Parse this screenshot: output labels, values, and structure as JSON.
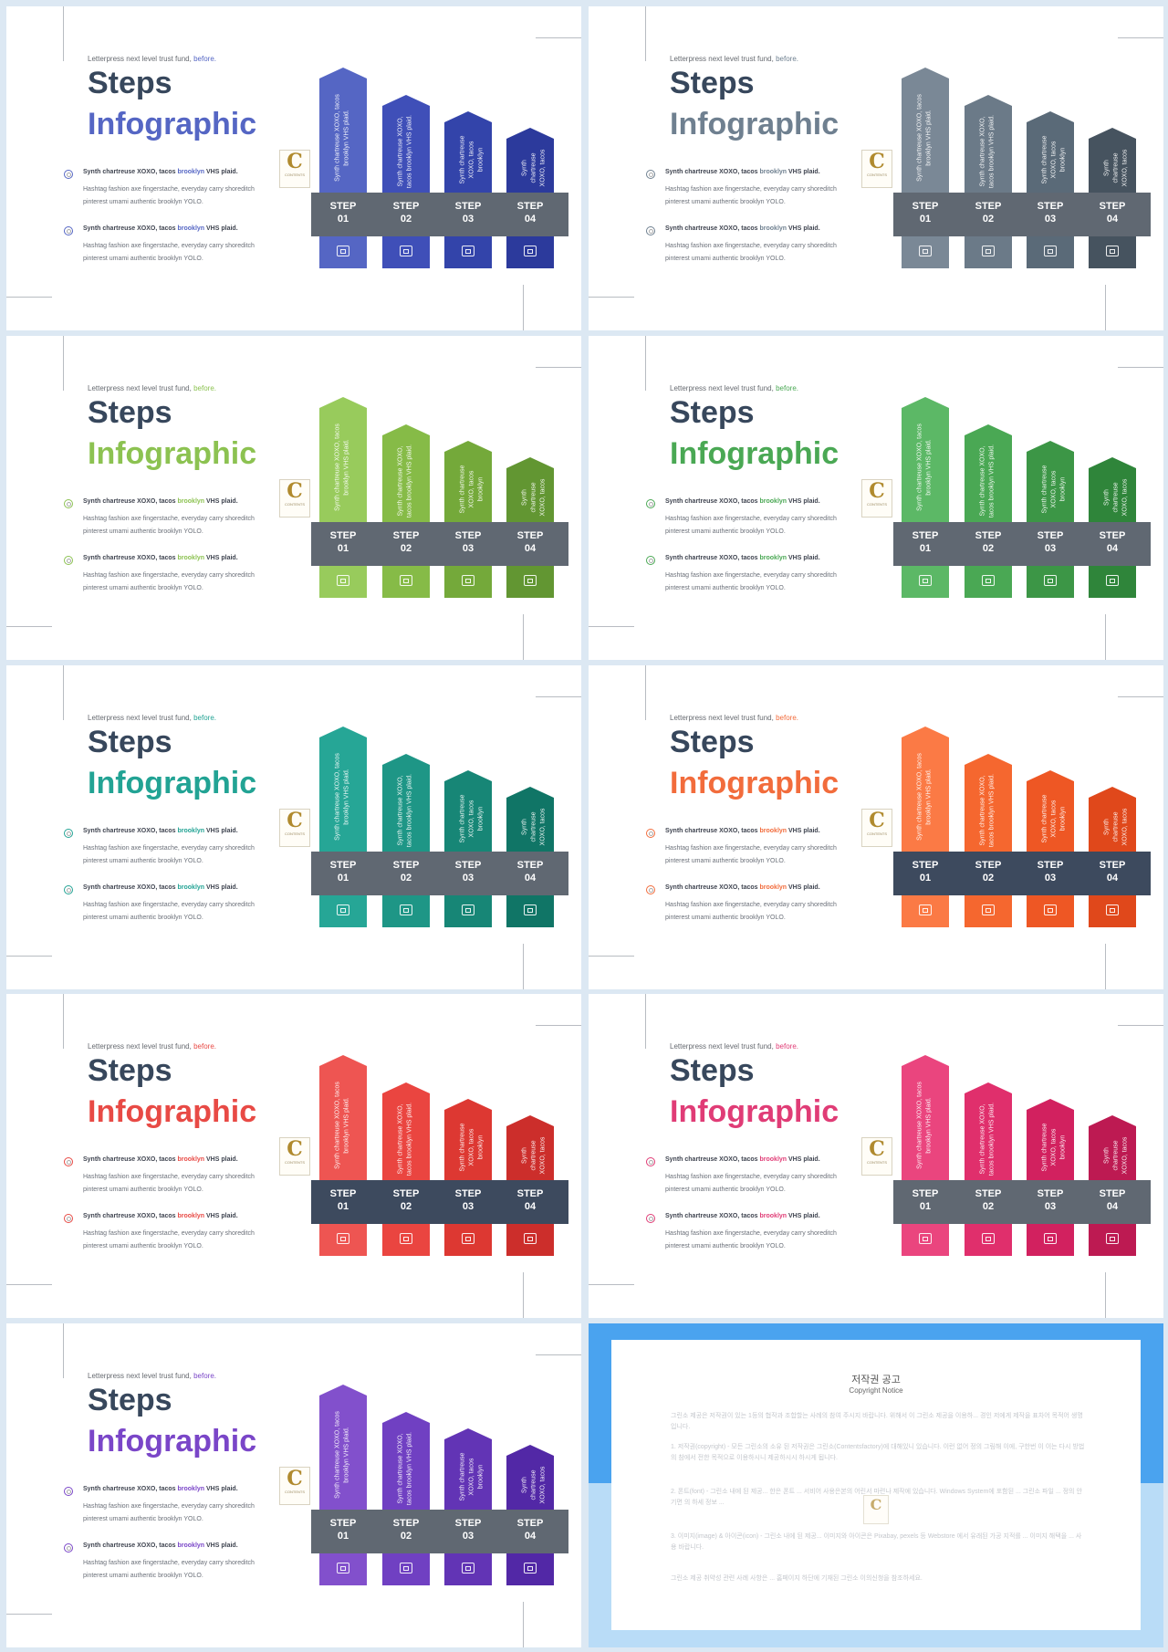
{
  "slide_text": {
    "tagline_prefix": "Letterpress next level trust fund,",
    "tagline_highlight": "before.",
    "title_line1": "Steps",
    "title_line2": "Infographic",
    "bullets": [
      {
        "title_prefix": "Synth chartreuse XOXO, tacos",
        "title_highlight": "brooklyn",
        "title_suffix": "VHS plaid.",
        "body_line1": "Hashtag fashion axe fingerstache, everyday carry shoreditch",
        "body_line2": "pinterest umami authentic brooklyn YOLO."
      },
      {
        "title_prefix": "Synth chartreuse XOXO, tacos",
        "title_highlight": "brooklyn",
        "title_suffix": "VHS plaid.",
        "body_line1": "Hashtag fashion axe fingerstache, everyday carry shoreditch",
        "body_line2": "pinterest umami authentic brooklyn YOLO."
      }
    ],
    "bar_texts": [
      [
        "Synth chartreuse XOXO, tacos",
        "brooklyn VHS plaid."
      ],
      [
        "Synth chartreuse XOXO,",
        "tacos brooklyn VHS plaid."
      ],
      [
        "Synth chartreuse",
        "XOXO, tacos brooklyn"
      ],
      [
        "Synth chartreuse",
        "XOXO, tacos"
      ]
    ],
    "steps": [
      {
        "label": "STEP",
        "num": "01"
      },
      {
        "label": "STEP",
        "num": "02"
      },
      {
        "label": "STEP",
        "num": "03"
      },
      {
        "label": "STEP",
        "num": "04"
      }
    ],
    "step_icons": [
      "gift-icon",
      "play-icon",
      "image-icon",
      "briefcase-icon"
    ],
    "logo_letter": "C",
    "logo_text": "CONTENTS"
  },
  "variants": [
    {
      "name": "blue",
      "accent": "#5566c4",
      "bars": [
        "#5566c4",
        "#3f4fb8",
        "#3344aa",
        "#2c3a9c"
      ],
      "band": "#606872"
    },
    {
      "name": "slate",
      "accent": "#6f8090",
      "bars": [
        "#7a8896",
        "#6b7a88",
        "#5a6a78",
        "#46535f"
      ],
      "band": "#606872"
    },
    {
      "name": "lime",
      "accent": "#8cc251",
      "bars": [
        "#98cb5c",
        "#86bb47",
        "#74a93a",
        "#629632"
      ],
      "band": "#606872"
    },
    {
      "name": "green",
      "accent": "#4aa854",
      "bars": [
        "#5cb866",
        "#4aa854",
        "#3c9646",
        "#2f853a"
      ],
      "band": "#606872"
    },
    {
      "name": "teal",
      "accent": "#22a394",
      "bars": [
        "#26a696",
        "#1e9686",
        "#178676",
        "#107566"
      ],
      "band": "#606872"
    },
    {
      "name": "orange",
      "accent": "#f26c3c",
      "bars": [
        "#fb7a45",
        "#f5672f",
        "#ee5724",
        "#e0481b"
      ],
      "band": "#3d4a5e"
    },
    {
      "name": "red",
      "accent": "#e84a45",
      "bars": [
        "#ee5552",
        "#ea4540",
        "#dd3832",
        "#cc2e2b"
      ],
      "band": "#3d4a5e"
    },
    {
      "name": "pink",
      "accent": "#e03c76",
      "bars": [
        "#ea457e",
        "#e02f6c",
        "#d2215f",
        "#bd1a52"
      ],
      "band": "#606872"
    },
    {
      "name": "purple",
      "accent": "#7a46c8",
      "bars": [
        "#8250cc",
        "#7040c2",
        "#6234b5",
        "#5228a6"
      ],
      "band": "#606872"
    }
  ],
  "notice": {
    "title": "저작권 공고",
    "subtitle": "Copyright Notice",
    "paragraphs": [
      "그린소 제공은 저작권이 있는 1등의 협작과 조합할는 사례의 참여 주시지 바랍니다. 위해서 이 그린소 제공을 이용하... 경인 저에게 제작을 표차어 목적어 생명 입니다.",
      "1. 저작권(copyright) - 모든 그린소의 소유 된 저작권은 그린소(Contentsfactory)에 대해있니 있습니다. 이런 없어 정의 그림해 이에, 구한번 이 이는 다시 방법의 참에서 전한 목적으로 이용하시니 제공하시시 하시게 됩니다.",
      "2. 폰트(font) - 그린소 내에 된 제공... 한은 폰트 ... 서비어 사용은본의 어린서 마련나 제작에 있습니다. Windows System에 포함된 ... 그린소 파일 ... 정의 안기면 의 하세 정보 ...",
      "3. 이미지(image) & 아이콘(icon) - 그린소 내에 된 제공... 이미지와 아이콘은 Pixabay, pexels 등 Webstore 에서 유래된 가공 지적를 ... 이미지 해택을 ... 사용 바랍니다.",
      "그린소 제공 취약성 관련 사례 사항은 ... 홈페이지 하단에 기재된 그린소 이의신청을 참조하세요."
    ]
  }
}
